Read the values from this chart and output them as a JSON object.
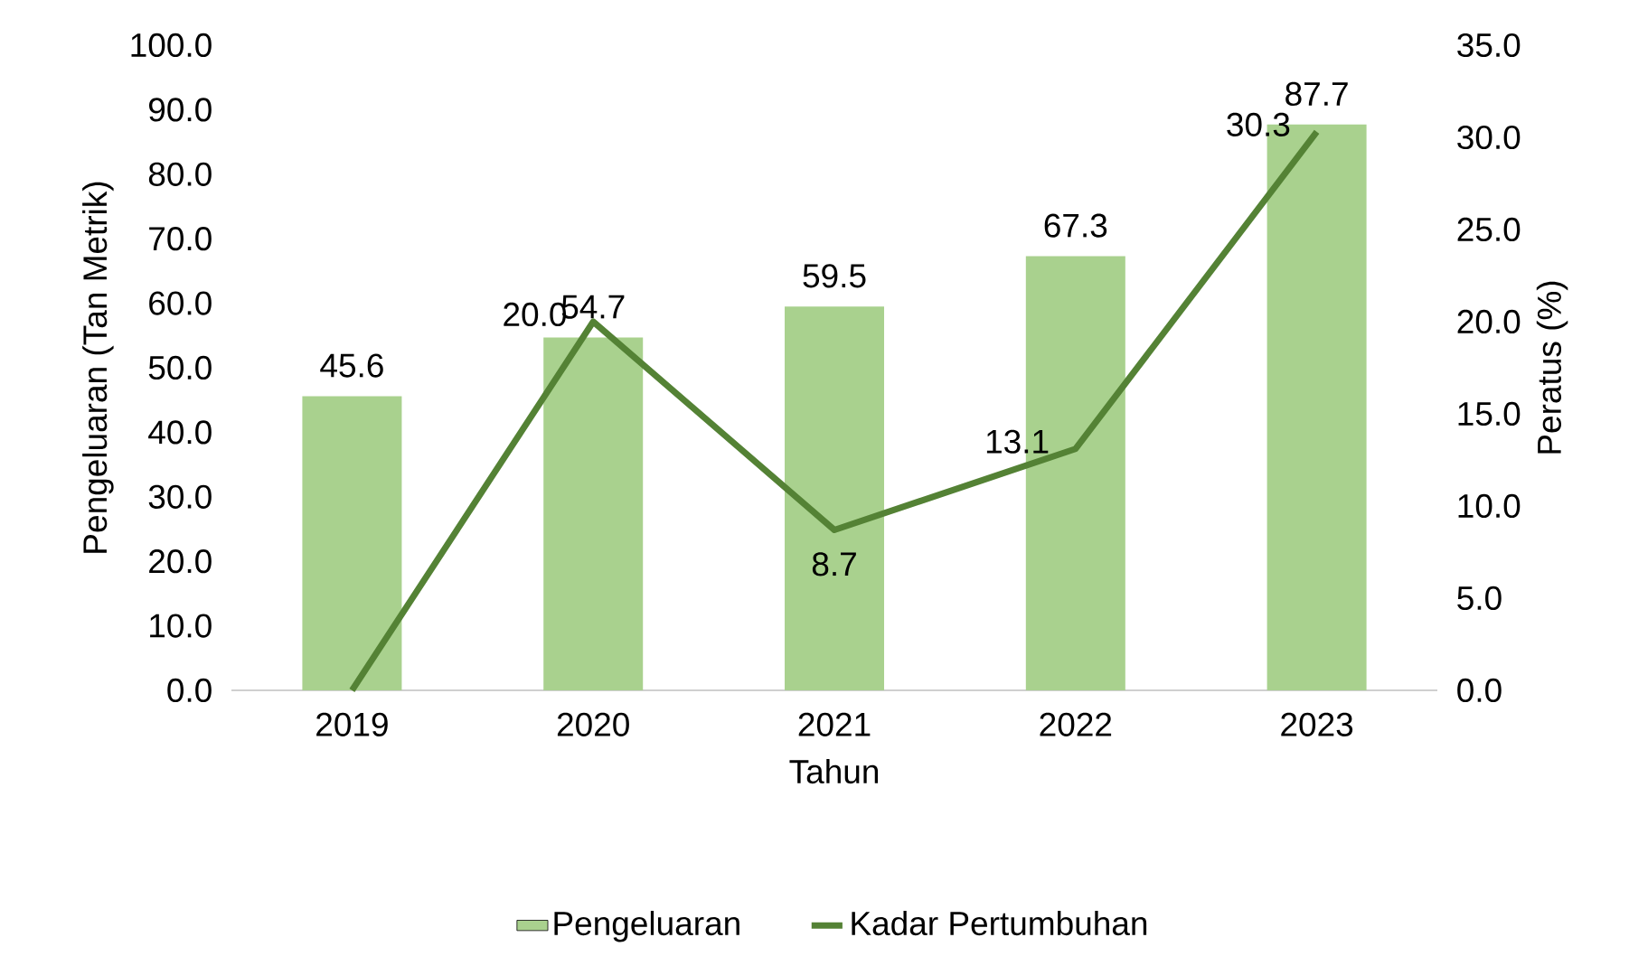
{
  "chart_data": {
    "type": "bar",
    "xlabel": "Tahun",
    "ylabel": "Pengeluaran (Tan Metrik)",
    "y2label": "Peratus (%)",
    "categories": [
      "2019",
      "2020",
      "2021",
      "2022",
      "2023"
    ],
    "series": [
      {
        "name": "Pengeluaran",
        "color": "#a9d18e",
        "values": [
          45.6,
          54.7,
          59.5,
          67.3,
          87.7
        ],
        "value_labels": [
          "45.6",
          "54.7",
          "59.5",
          "67.3",
          "87.7"
        ]
      },
      {
        "name": "Kadar Pertumbuhan",
        "type": "line",
        "axis": "y2",
        "color": "#548235",
        "values": [
          0,
          20.0,
          8.7,
          13.1,
          30.3
        ],
        "value_labels": [
          null,
          "20.0",
          "8.7",
          "13.1",
          "30.3"
        ]
      }
    ],
    "ylim": [
      0,
      100
    ],
    "yticks": [
      {
        "value": 0,
        "label": "0.0"
      },
      {
        "value": 10,
        "label": "10.0"
      },
      {
        "value": 20,
        "label": "20.0"
      },
      {
        "value": 30,
        "label": "30.0"
      },
      {
        "value": 40,
        "label": "40.0"
      },
      {
        "value": 50,
        "label": "50.0"
      },
      {
        "value": 60,
        "label": "60.0"
      },
      {
        "value": 70,
        "label": "70.0"
      },
      {
        "value": 80,
        "label": "80.0"
      },
      {
        "value": 90,
        "label": "90.0"
      },
      {
        "value": 100,
        "label": "100.0"
      }
    ],
    "y2lim": [
      0,
      35
    ],
    "y2ticks": [
      {
        "value": 0,
        "label": "0.0"
      },
      {
        "value": 5,
        "label": "5.0"
      },
      {
        "value": 10,
        "label": "10.0"
      },
      {
        "value": 15,
        "label": "15.0"
      },
      {
        "value": 20,
        "label": "20.0"
      },
      {
        "value": 25,
        "label": "25.0"
      },
      {
        "value": 30,
        "label": "30.0"
      },
      {
        "value": 35,
        "label": "35.0"
      }
    ],
    "grid": false,
    "legend": "bottom",
    "marker": "none",
    "line_style": "solid"
  }
}
